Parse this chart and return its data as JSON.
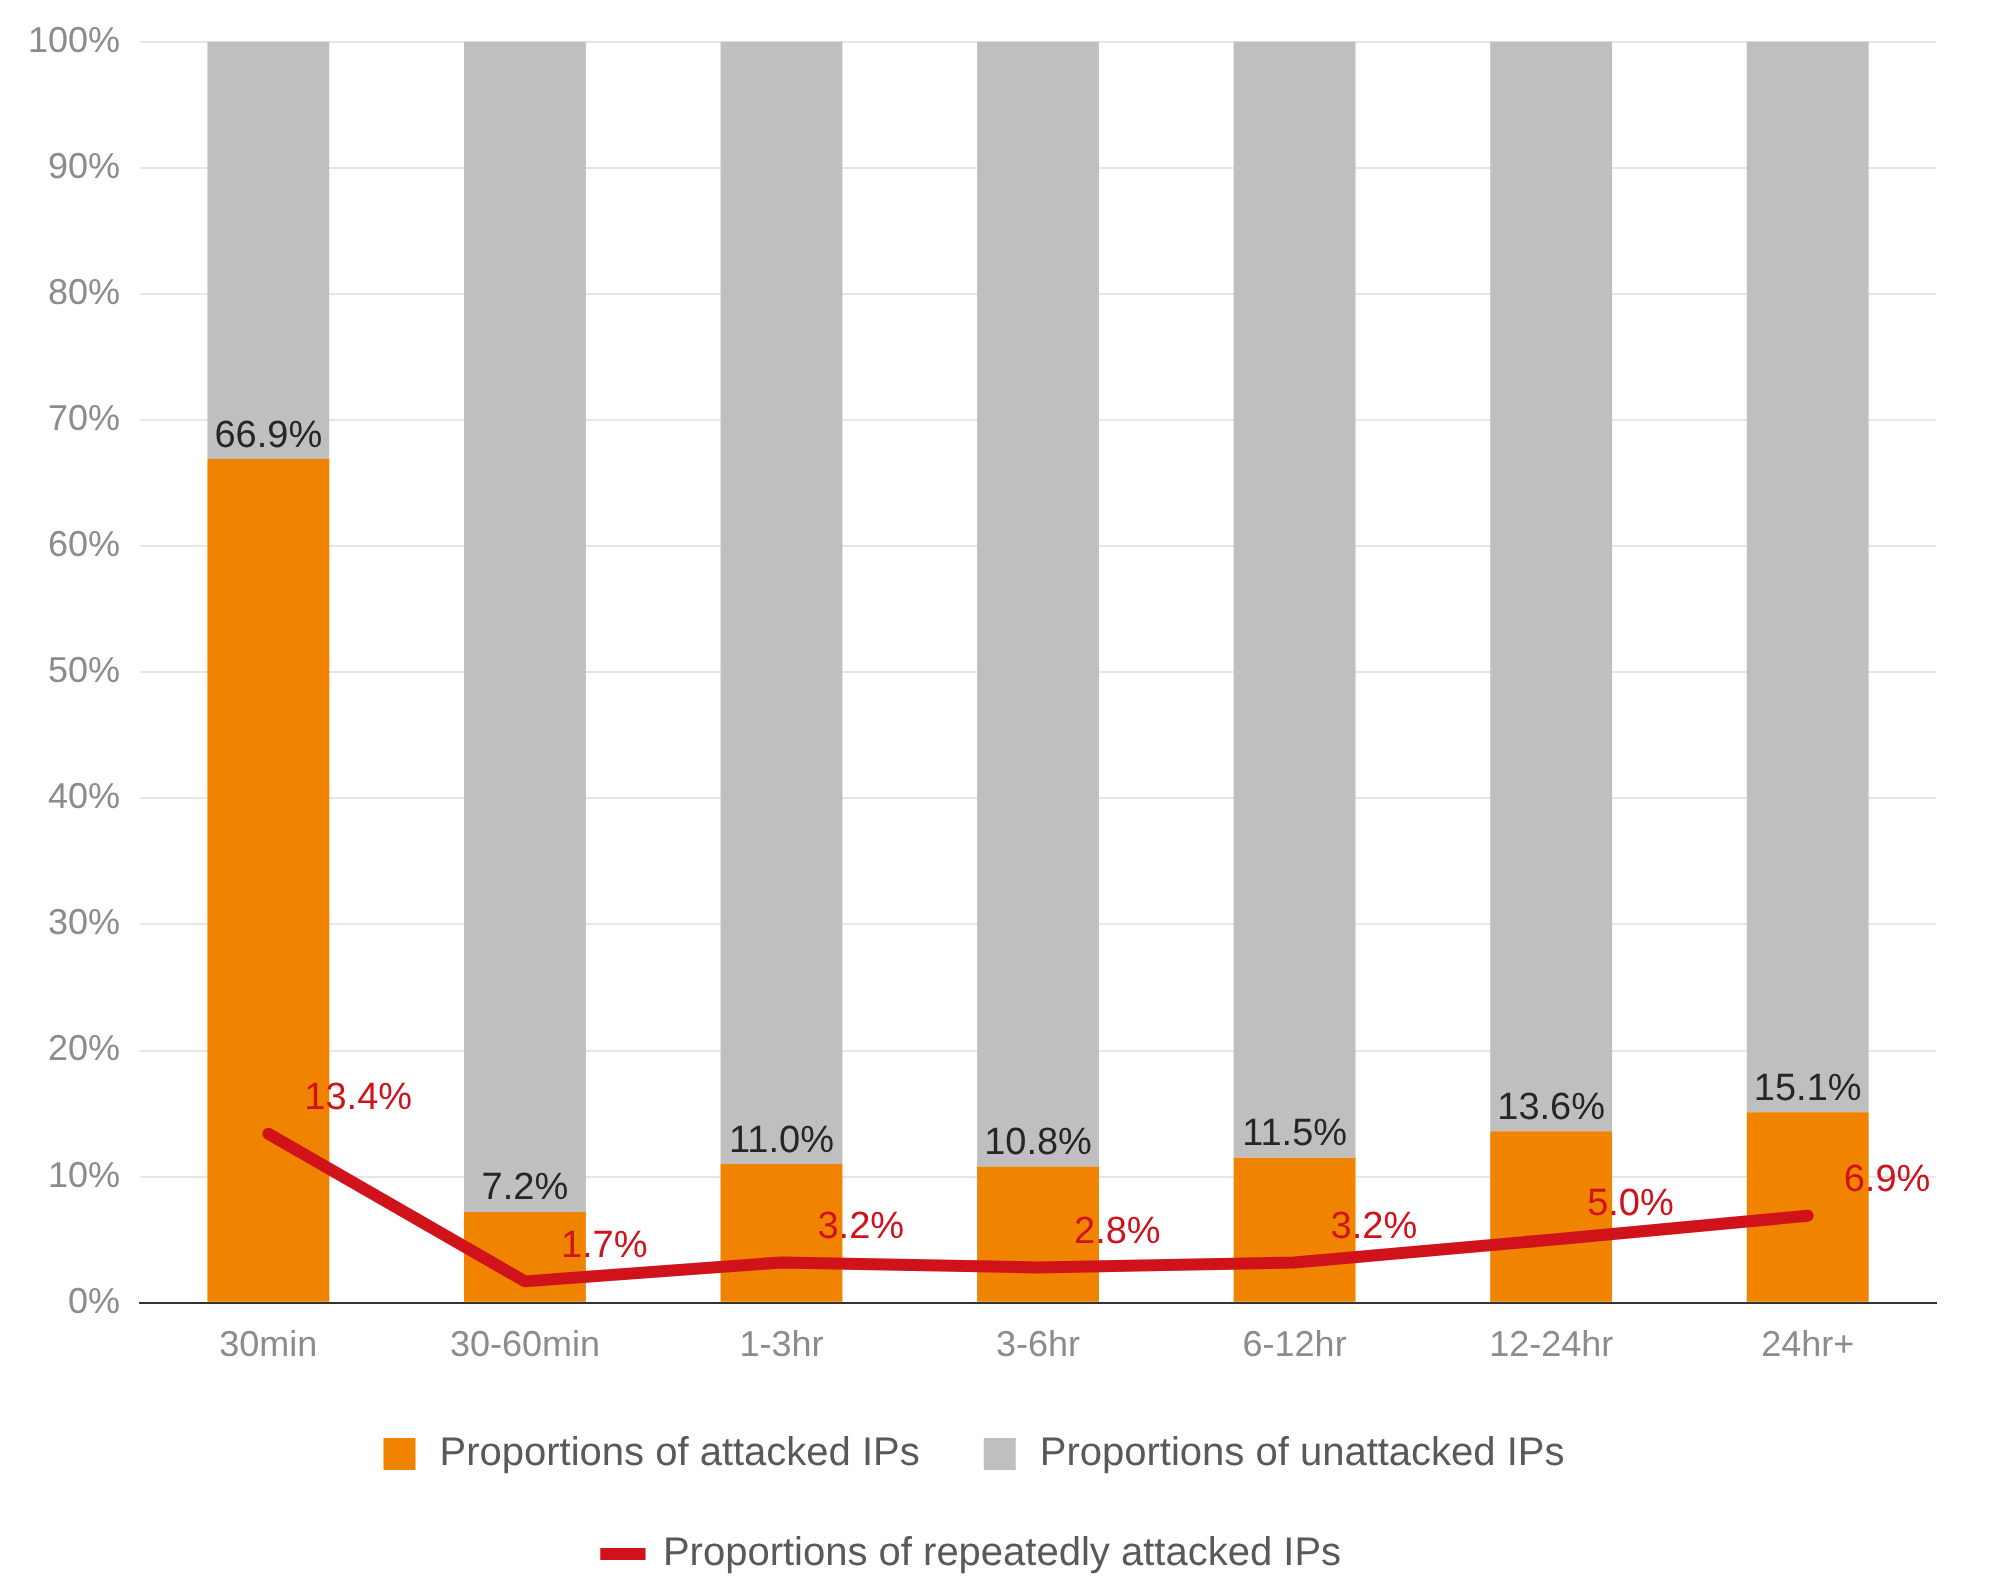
{
  "chart_data": {
    "type": "bar",
    "stacked": true,
    "categories": [
      "30min",
      "30-60min",
      "1-3hr",
      "3-6hr",
      "6-12hr",
      "12-24hr",
      "24hr+"
    ],
    "series": [
      {
        "name": "Proportions of attacked IPs",
        "color": "#f08300",
        "values": [
          66.9,
          7.2,
          11.0,
          10.8,
          11.5,
          13.6,
          15.1
        ],
        "value_labels": [
          "66.9%",
          "7.2%",
          "11.0%",
          "10.8%",
          "11.5%",
          "13.6%",
          "15.1%"
        ]
      },
      {
        "name": "Proportions of unattacked IPs",
        "color": "#bfbfbf",
        "values": [
          33.1,
          92.8,
          89.0,
          89.2,
          88.5,
          86.4,
          84.9
        ]
      },
      {
        "name": "Proportions of repeatedly attacked IPs",
        "type": "line",
        "color": "#d0121b",
        "marker": "none",
        "values": [
          13.4,
          1.7,
          3.2,
          2.8,
          3.2,
          5.0,
          6.9
        ],
        "value_labels": [
          "13.4%",
          "1.7%",
          "3.2%",
          "2.8%",
          "3.2%",
          "5.0%",
          "6.9%"
        ]
      }
    ],
    "ylim": [
      0,
      100
    ],
    "yticks": [
      {
        "value": 0,
        "label": "0%"
      },
      {
        "value": 10,
        "label": "10%"
      },
      {
        "value": 20,
        "label": "20%"
      },
      {
        "value": 30,
        "label": "30%"
      },
      {
        "value": 40,
        "label": "40%"
      },
      {
        "value": 50,
        "label": "50%"
      },
      {
        "value": 60,
        "label": "60%"
      },
      {
        "value": 70,
        "label": "70%"
      },
      {
        "value": 80,
        "label": "80%"
      },
      {
        "value": 90,
        "label": "90%"
      },
      {
        "value": 100,
        "label": "100%"
      }
    ],
    "grid": "y",
    "legend": "bottom"
  }
}
